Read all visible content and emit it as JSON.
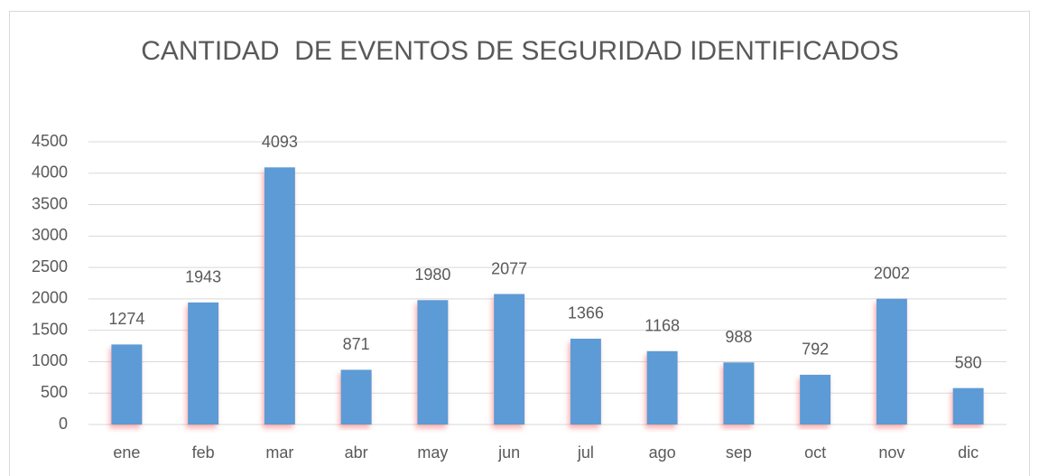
{
  "chart_data": {
    "type": "bar",
    "title": "CANTIDAD  DE EVENTOS DE SEGURIDAD IDENTIFICADOS",
    "categories": [
      "ene",
      "feb",
      "mar",
      "abr",
      "may",
      "jun",
      "jul",
      "ago",
      "sep",
      "oct",
      "nov",
      "dic"
    ],
    "values": [
      1274,
      1943,
      4093,
      871,
      1980,
      2077,
      1366,
      1168,
      988,
      792,
      2002,
      580
    ],
    "color": "#5b9bd5",
    "ylim": [
      0,
      4500
    ],
    "yticks": [
      0,
      500,
      1000,
      1500,
      2000,
      2500,
      3000,
      3500,
      4000,
      4500
    ],
    "grid": true
  }
}
